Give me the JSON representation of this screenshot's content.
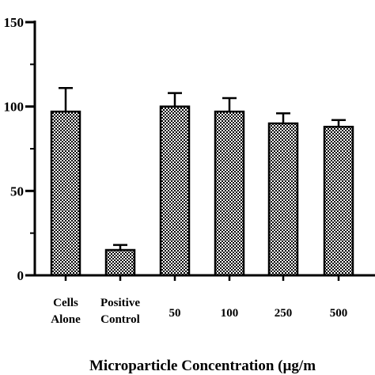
{
  "chart_data": {
    "type": "bar",
    "categories": [
      [
        "Cells",
        "Alone"
      ],
      [
        "Positive",
        "Control"
      ],
      [
        "50"
      ],
      [
        "100"
      ],
      [
        "250"
      ],
      [
        "500"
      ]
    ],
    "values": [
      97,
      15,
      100,
      97,
      90,
      88
    ],
    "errors": [
      14,
      3,
      8,
      8,
      6,
      4
    ],
    "ylim": [
      0,
      150
    ],
    "yticks": [
      0,
      50,
      100,
      150
    ],
    "xlabel": "Microparticle Concentration (µg/m",
    "ylabel": "",
    "title": "",
    "bar_fill": "checkerboard",
    "colors": {
      "bar_light": "#ffffff",
      "bar_dark": "#000000",
      "axis": "#000000"
    }
  }
}
